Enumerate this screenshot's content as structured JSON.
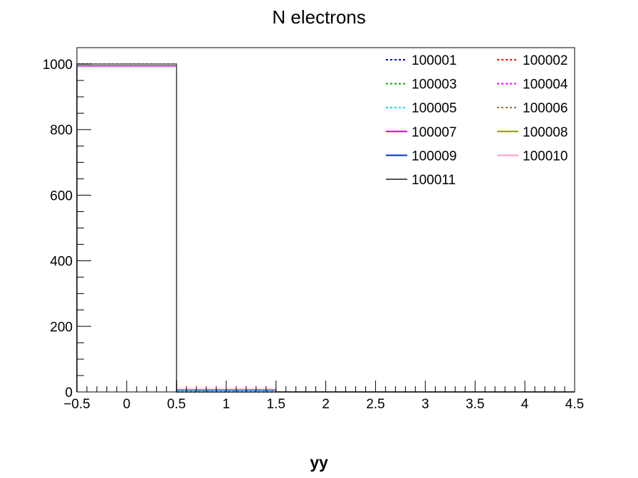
{
  "chart_data": {
    "type": "histogram",
    "title": "N electrons",
    "xlabel": "yy",
    "ylabel": "",
    "xlim": [
      -0.5,
      4.5
    ],
    "ylim": [
      0,
      1050
    ],
    "x_ticks": [
      "−0.5",
      "0",
      "0.5",
      "1",
      "1.5",
      "2",
      "2.5",
      "3",
      "3.5",
      "4",
      "4.5"
    ],
    "x_tick_values": [
      -0.5,
      0,
      0.5,
      1,
      1.5,
      2,
      2.5,
      3,
      3.5,
      4,
      4.5
    ],
    "y_ticks": [
      "0",
      "200",
      "400",
      "600",
      "800",
      "1000"
    ],
    "y_tick_values": [
      0,
      200,
      400,
      600,
      800,
      1000
    ],
    "bin_edges": [
      -0.5,
      0.5,
      1.5,
      2.5,
      3.5,
      4.5
    ],
    "legend_position": "top-right",
    "legend_columns": 2,
    "series": [
      {
        "name": "100001",
        "color": "#0000cc",
        "style": "dotted",
        "values": [
          1000,
          0,
          0,
          0,
          0
        ]
      },
      {
        "name": "100002",
        "color": "#ff0000",
        "style": "dotted",
        "values": [
          1000,
          0,
          0,
          0,
          0
        ]
      },
      {
        "name": "100003",
        "color": "#00aa00",
        "style": "dotted",
        "values": [
          1000,
          0,
          0,
          0,
          0
        ]
      },
      {
        "name": "100004",
        "color": "#ff00ff",
        "style": "dotted",
        "values": [
          994,
          6,
          0,
          0,
          0
        ]
      },
      {
        "name": "100005",
        "color": "#00dddd",
        "style": "dotted",
        "values": [
          995,
          5,
          0,
          0,
          0
        ]
      },
      {
        "name": "100006",
        "color": "#996633",
        "style": "dotted",
        "values": [
          994,
          6,
          0,
          0,
          0
        ]
      },
      {
        "name": "100007",
        "color": "#cc00ff",
        "style": "solid",
        "values": [
          994,
          6,
          0,
          0,
          0
        ]
      },
      {
        "name": "100008",
        "color": "#999900",
        "style": "solid",
        "values": [
          994,
          6,
          0,
          0,
          0
        ]
      },
      {
        "name": "100009",
        "color": "#0033bb",
        "style": "solid",
        "values": [
          994,
          6,
          0,
          0,
          0
        ]
      },
      {
        "name": "100010",
        "color": "#ff99cc",
        "style": "solid",
        "values": [
          992,
          8,
          0,
          0,
          0
        ]
      },
      {
        "name": "100011",
        "color": "#555555",
        "style": "solid",
        "values": [
          1000,
          0,
          0,
          0,
          0
        ]
      }
    ]
  }
}
